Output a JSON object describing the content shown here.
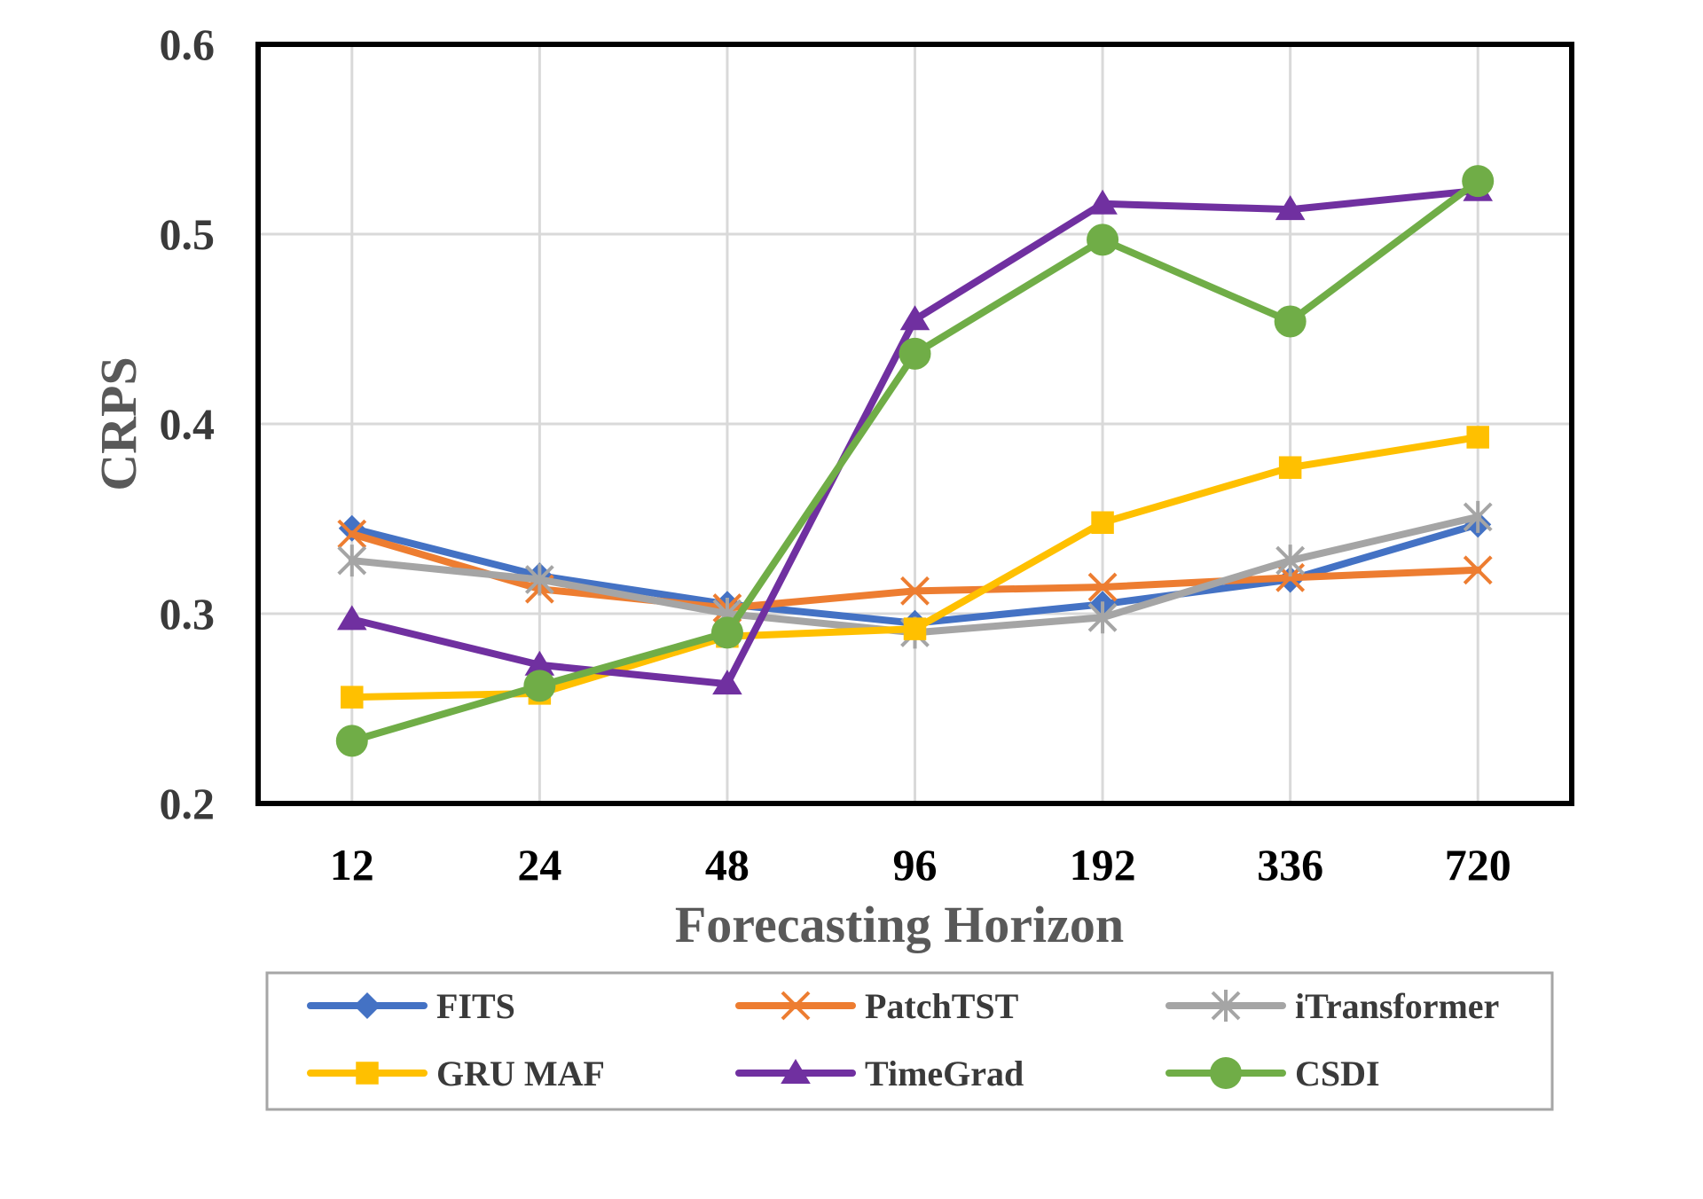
{
  "chart_data": {
    "type": "line",
    "title": "",
    "xlabel": "Forecasting Horizon",
    "ylabel": "CRPS",
    "ylim": [
      0.2,
      0.6
    ],
    "yticks": [
      "0.2",
      "0.3",
      "0.4",
      "0.5",
      "0.6"
    ],
    "categories": [
      "12",
      "24",
      "48",
      "96",
      "192",
      "336",
      "720"
    ],
    "grid": true,
    "legend_position": "bottom",
    "series": [
      {
        "name": "FITS",
        "color": "#4472C4",
        "marker": "diamond",
        "values": [
          0.345,
          0.32,
          0.305,
          0.295,
          0.305,
          0.318,
          0.347
        ]
      },
      {
        "name": "PatchTST",
        "color": "#ED7D31",
        "marker": "x",
        "values": [
          0.342,
          0.313,
          0.303,
          0.312,
          0.314,
          0.319,
          0.323
        ]
      },
      {
        "name": "iTransformer",
        "color": "#A5A5A5",
        "marker": "asterisk",
        "values": [
          0.328,
          0.318,
          0.3,
          0.29,
          0.298,
          0.328,
          0.351
        ]
      },
      {
        "name": "GRU MAF",
        "color": "#FFC000",
        "marker": "square",
        "values": [
          0.256,
          0.258,
          0.288,
          0.292,
          0.348,
          0.377,
          0.393
        ]
      },
      {
        "name": "TimeGrad",
        "color": "#7030A0",
        "marker": "triangle",
        "values": [
          0.297,
          0.273,
          0.263,
          0.455,
          0.516,
          0.513,
          0.523
        ]
      },
      {
        "name": "CSDI",
        "color": "#70AD47",
        "marker": "circle",
        "values": [
          0.233,
          0.262,
          0.29,
          0.437,
          0.497,
          0.454,
          0.528
        ]
      }
    ]
  }
}
